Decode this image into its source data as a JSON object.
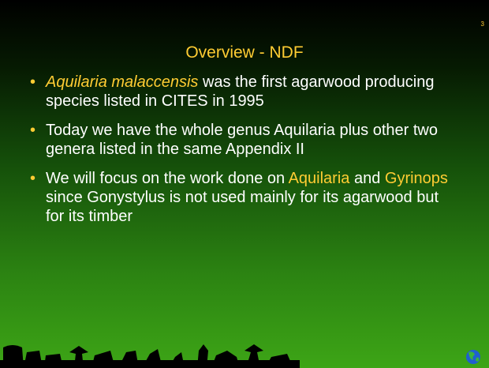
{
  "slide_number": "3",
  "title": "Overview - NDF",
  "bullets": [
    [
      "Aquilaria malaccensis",
      " was the first agarwood producing species listed in CITES in 1995"
    ],
    [
      "Today we have the whole genus Aquilaria plus other two genera listed in the same Appendix II"
    ],
    [
      "We will focus on the work done on ",
      "Aquilaria",
      " and ",
      "Gyrinops",
      " since Gonystylus is not used mainly for its agarwood but for its timber"
    ]
  ]
}
